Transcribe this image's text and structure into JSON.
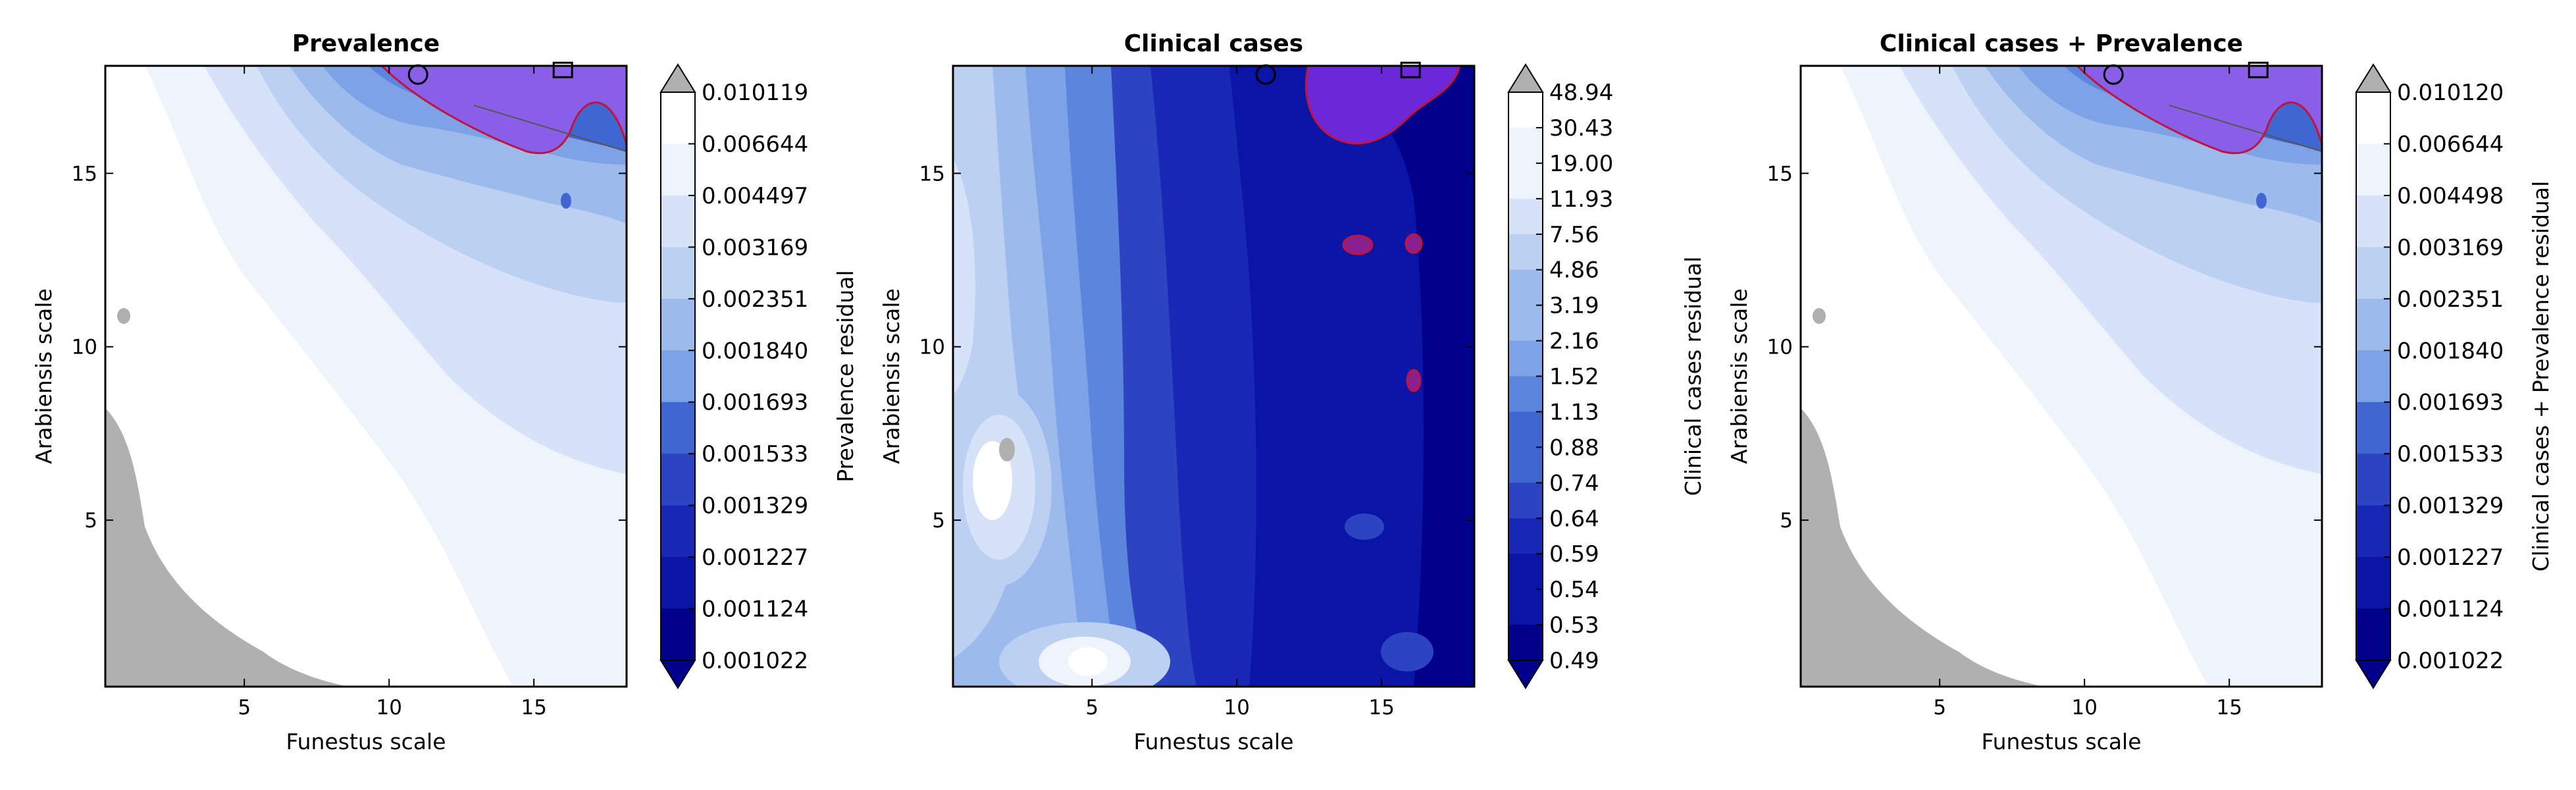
{
  "palette": [
    "#00008b",
    "#0a14a6",
    "#1928b4",
    "#2c44c2",
    "#4066d2",
    "#5c86de",
    "#7da2e6",
    "#9cbaec",
    "#bcd0f2",
    "#d6e2f8",
    "#eef3fc",
    "#ffffff"
  ],
  "grey": "#b0b0b0",
  "purple": "#6a28d8",
  "contour_line": "#c0143c",
  "chart_data": [
    {
      "type": "heatmap",
      "title": "Prevalence",
      "xlabel": "Funestus scale",
      "ylabel": "Arabiensis scale",
      "xlim": [
        0.2,
        18.2
      ],
      "ylim": [
        0.2,
        18.1
      ],
      "xticks": [
        "5",
        "10",
        "15"
      ],
      "yticks": [
        "5",
        "10",
        "15"
      ],
      "colorbar_label": "Prevalence residual",
      "colorbar_ticks": [
        "0.010119",
        "0.006644",
        "0.004497",
        "0.003169",
        "0.002351",
        "0.001840",
        "0.001693",
        "0.001533",
        "0.001329",
        "0.001227",
        "0.001124",
        "0.001022"
      ],
      "marker_circle": [
        11,
        18
      ],
      "marker_square": [
        16,
        18
      ]
    },
    {
      "type": "heatmap",
      "title": "Clinical cases",
      "xlabel": "Funestus scale",
      "ylabel": "Arabiensis scale",
      "xlim": [
        0.2,
        18.2
      ],
      "ylim": [
        0.2,
        18.1
      ],
      "xticks": [
        "5",
        "10",
        "15"
      ],
      "yticks": [
        "5",
        "10",
        "15"
      ],
      "colorbar_label": "Clinical cases residual",
      "colorbar_ticks": [
        "48.94",
        "30.43",
        "19.00",
        "11.93",
        "7.56",
        "4.86",
        "3.19",
        "2.16",
        "1.52",
        "1.13",
        "0.88",
        "0.74",
        "0.64",
        "0.59",
        "0.54",
        "0.53",
        "0.49"
      ],
      "marker_circle": [
        11,
        18
      ],
      "marker_square": [
        16,
        18
      ]
    },
    {
      "type": "heatmap",
      "title": "Clinical cases + Prevalence",
      "xlabel": "Funestus scale",
      "ylabel": "Arabiensis scale",
      "xlim": [
        0.2,
        18.2
      ],
      "ylim": [
        0.2,
        18.1
      ],
      "xticks": [
        "5",
        "10",
        "15"
      ],
      "yticks": [
        "5",
        "10",
        "15"
      ],
      "colorbar_label": "Clinical cases + Prevalence residual",
      "colorbar_ticks": [
        "0.010120",
        "0.006644",
        "0.004498",
        "0.003169",
        "0.002351",
        "0.001840",
        "0.001693",
        "0.001533",
        "0.001329",
        "0.001227",
        "0.001124",
        "0.001022"
      ],
      "marker_circle": [
        11,
        18
      ],
      "marker_square": [
        16,
        18
      ]
    }
  ]
}
